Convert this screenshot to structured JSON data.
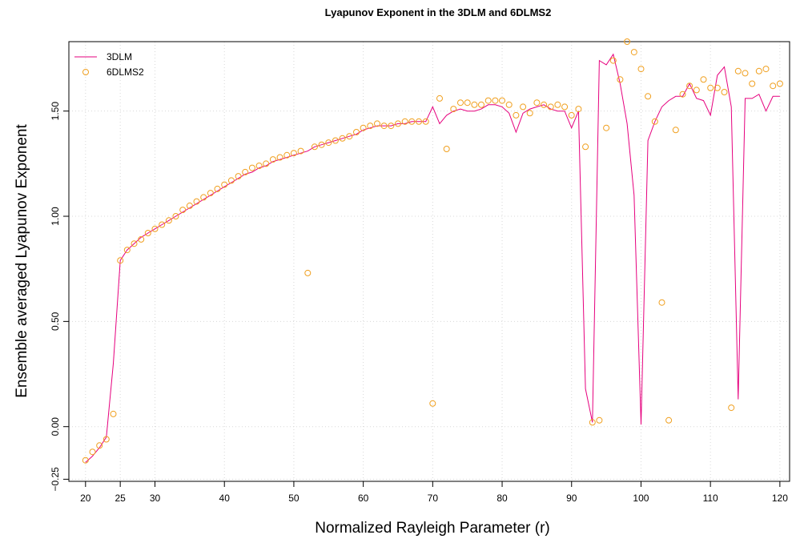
{
  "chart_data": {
    "type": "line",
    "title": "Lyapunov Exponent in the 3DLM and 6DLMS2",
    "xlabel": "Normalized Rayleigh Parameter (r)",
    "ylabel": "Ensemble averaged Lyapunov Exponent",
    "xlim": [
      17.6,
      121.4
    ],
    "ylim": [
      -0.26,
      1.83
    ],
    "xticks": [
      20,
      25,
      30,
      40,
      50,
      60,
      70,
      80,
      90,
      100,
      110,
      120
    ],
    "xtick_labels": [
      "20",
      "25",
      "30",
      "40",
      "50",
      "60",
      "70",
      "80",
      "90",
      "100",
      "110",
      "120"
    ],
    "yticks": [
      -0.25,
      0.0,
      0.5,
      1.0,
      1.5
    ],
    "ytick_labels": [
      "−0.25",
      "0.00",
      "0.50",
      "1.00",
      "1.50"
    ],
    "grid": true,
    "legend": "top-left",
    "series": [
      {
        "name": "3DLM",
        "style": "line",
        "color": "#e6007e",
        "x": [
          20,
          21,
          22,
          23,
          24,
          25,
          26,
          27,
          28,
          29,
          30,
          31,
          32,
          33,
          34,
          35,
          36,
          37,
          38,
          39,
          40,
          41,
          42,
          43,
          44,
          45,
          46,
          47,
          48,
          49,
          50,
          51,
          52,
          53,
          54,
          55,
          56,
          57,
          58,
          59,
          60,
          61,
          62,
          63,
          64,
          65,
          66,
          67,
          68,
          69,
          70,
          71,
          72,
          73,
          74,
          75,
          76,
          77,
          78,
          79,
          80,
          81,
          82,
          83,
          84,
          85,
          86,
          87,
          88,
          89,
          90,
          91,
          92,
          93,
          94,
          95,
          96,
          97,
          98,
          99,
          100,
          101,
          102,
          103,
          104,
          105,
          106,
          107,
          108,
          109,
          110,
          111,
          112,
          113,
          114,
          115,
          116,
          117,
          118,
          119,
          120
        ],
        "y": [
          -0.17,
          -0.14,
          -0.1,
          -0.05,
          0.3,
          0.79,
          0.84,
          0.87,
          0.9,
          0.92,
          0.94,
          0.96,
          0.98,
          1.0,
          1.02,
          1.04,
          1.06,
          1.08,
          1.1,
          1.12,
          1.14,
          1.16,
          1.18,
          1.2,
          1.21,
          1.23,
          1.24,
          1.26,
          1.27,
          1.28,
          1.29,
          1.3,
          1.31,
          1.33,
          1.34,
          1.35,
          1.36,
          1.37,
          1.38,
          1.39,
          1.41,
          1.42,
          1.43,
          1.43,
          1.43,
          1.44,
          1.44,
          1.45,
          1.45,
          1.45,
          1.52,
          1.44,
          1.48,
          1.5,
          1.51,
          1.5,
          1.5,
          1.51,
          1.53,
          1.53,
          1.52,
          1.49,
          1.4,
          1.49,
          1.51,
          1.52,
          1.53,
          1.51,
          1.5,
          1.5,
          1.42,
          1.5,
          0.18,
          0.02,
          1.74,
          1.72,
          1.77,
          1.63,
          1.44,
          1.1,
          0.01,
          1.36,
          1.45,
          1.52,
          1.55,
          1.57,
          1.57,
          1.63,
          1.56,
          1.55,
          1.48,
          1.67,
          1.71,
          1.52,
          0.13,
          1.56,
          1.56,
          1.58,
          1.5,
          1.57,
          1.57
        ]
      },
      {
        "name": "6DLMS2",
        "style": "points",
        "color": "#f0a020",
        "x": [
          20,
          21,
          22,
          23,
          24,
          25,
          26,
          27,
          28,
          29,
          30,
          31,
          32,
          33,
          34,
          35,
          36,
          37,
          38,
          39,
          40,
          41,
          42,
          43,
          44,
          45,
          46,
          47,
          48,
          49,
          50,
          51,
          52,
          53,
          54,
          55,
          56,
          57,
          58,
          59,
          60,
          61,
          62,
          63,
          64,
          65,
          66,
          67,
          68,
          69,
          70,
          71,
          72,
          73,
          74,
          75,
          76,
          77,
          78,
          79,
          80,
          81,
          82,
          83,
          84,
          85,
          86,
          87,
          88,
          89,
          90,
          91,
          92,
          93,
          94,
          95,
          96,
          97,
          98,
          99,
          100,
          101,
          102,
          103,
          104,
          105,
          106,
          107,
          108,
          109,
          110,
          111,
          112,
          113,
          114,
          115,
          116,
          117,
          118,
          119,
          120
        ],
        "y": [
          -0.16,
          -0.12,
          -0.09,
          -0.06,
          0.06,
          0.79,
          0.84,
          0.87,
          0.89,
          0.92,
          0.94,
          0.96,
          0.98,
          1.0,
          1.03,
          1.05,
          1.07,
          1.09,
          1.11,
          1.13,
          1.15,
          1.17,
          1.19,
          1.21,
          1.23,
          1.24,
          1.25,
          1.27,
          1.28,
          1.29,
          1.3,
          1.31,
          0.73,
          1.33,
          1.34,
          1.35,
          1.36,
          1.37,
          1.38,
          1.4,
          1.42,
          1.43,
          1.44,
          1.43,
          1.43,
          1.44,
          1.45,
          1.45,
          1.45,
          1.45,
          0.11,
          1.56,
          1.32,
          1.51,
          1.54,
          1.54,
          1.53,
          1.53,
          1.55,
          1.55,
          1.55,
          1.53,
          1.48,
          1.52,
          1.49,
          1.54,
          1.53,
          1.52,
          1.53,
          1.52,
          1.48,
          1.51,
          1.33,
          0.02,
          0.03,
          1.42,
          1.74,
          1.65,
          1.83,
          1.78,
          1.7,
          1.57,
          1.45,
          0.59,
          0.03,
          1.41,
          1.58,
          1.62,
          1.6,
          1.65,
          1.61,
          1.61,
          1.59,
          0.09,
          1.69,
          1.68,
          1.63,
          1.69,
          1.7,
          1.62,
          1.63
        ]
      }
    ]
  }
}
